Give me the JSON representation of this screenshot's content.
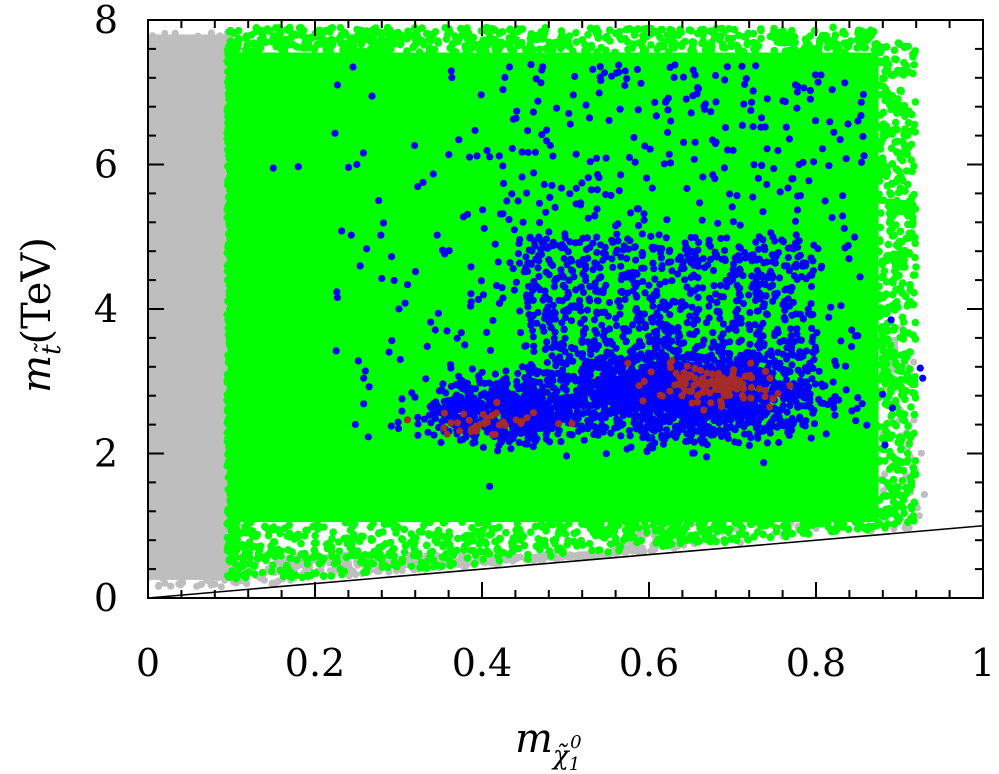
{
  "chart_data": {
    "type": "scatter",
    "title": "",
    "xlabel": "m_{χ̃₁⁰}",
    "ylabel": "m_{t̃}(TeV)",
    "xlabel_parts": {
      "base": "m",
      "sub": "χ̃",
      "sub_index": "1",
      "sup_index": "0"
    },
    "ylabel_parts": {
      "base": "m",
      "sub": "t̃",
      "unit": "(TeV)"
    },
    "xlim": [
      0,
      1
    ],
    "ylim": [
      0,
      8
    ],
    "x_ticks": [
      "0",
      "0.2",
      "0.4",
      "0.6",
      "0.8",
      "1"
    ],
    "x_tick_values": [
      0,
      0.2,
      0.4,
      0.6,
      0.8,
      1
    ],
    "y_ticks": [
      "0",
      "2",
      "4",
      "6",
      "8"
    ],
    "y_tick_values": [
      0,
      2,
      4,
      6,
      8
    ],
    "grid": false,
    "legend": "none",
    "reference_line": {
      "x": [
        0,
        1
      ],
      "y": [
        0,
        1
      ],
      "color": "#000000"
    },
    "series": [
      {
        "color": "#bebebe",
        "region": {
          "x": [
            0.0,
            0.93
          ],
          "y": [
            0.2,
            7.8
          ]
        }
      },
      {
        "color": "#00ff00",
        "region": {
          "x": [
            0.09,
            0.91
          ],
          "y": [
            0.4,
            7.9
          ]
        }
      },
      {
        "color": "#0000ff",
        "points_sparse": {
          "x": [
            0.15,
            0.88
          ],
          "y": [
            2.0,
            7.5
          ]
        },
        "clusters": [
          {
            "x": 0.43,
            "y": 2.55
          },
          {
            "x": 0.64,
            "y": 2.85
          }
        ]
      },
      {
        "color": "#a52a2a",
        "clusters": [
          {
            "x": 0.42,
            "y": 2.5
          },
          {
            "x": 0.67,
            "y": 2.9
          }
        ]
      }
    ]
  }
}
